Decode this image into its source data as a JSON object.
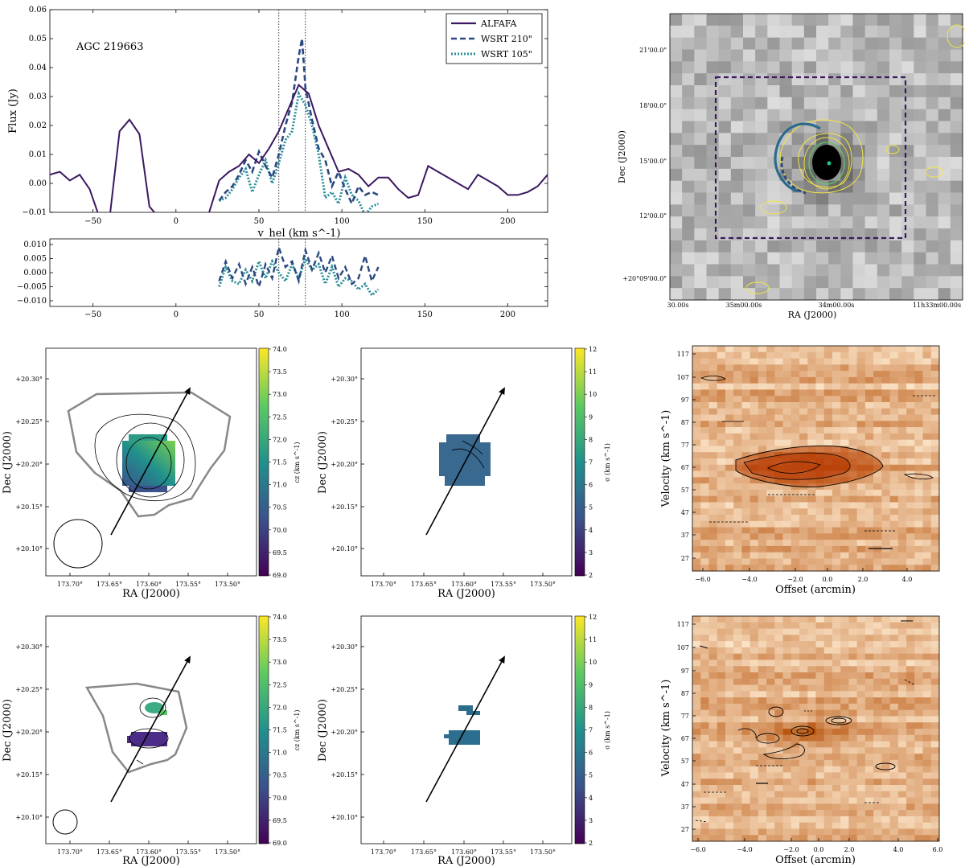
{
  "chart_data": [
    {
      "type": "line",
      "panel": "spectrum",
      "annotation": "AGC 219663",
      "xlabel": "v_hel (km s^-1)",
      "ylabel": "Flux (Jy)",
      "xlim": [
        -76,
        224
      ],
      "ylim": [
        -0.01,
        0.06
      ],
      "xticks": [
        "−50",
        "0",
        "50",
        "100",
        "150",
        "200"
      ],
      "yticks": [
        "−0.01",
        "0.00",
        "0.01",
        "0.02",
        "0.03",
        "0.04",
        "0.05",
        "0.06"
      ],
      "vlines": [
        62,
        78
      ],
      "legend": [
        "ALFAFA",
        "WSRT 210\"",
        "WSRT 105\""
      ],
      "series": [
        {
          "name": "ALFAFA",
          "color": "#3b1860",
          "x": [
            -76,
            -70,
            -64,
            -58,
            -52,
            -46,
            -40,
            -34,
            -28,
            -22,
            -16,
            -10,
            -4,
            2,
            8,
            14,
            20,
            26,
            32,
            38,
            44,
            50,
            56,
            62,
            68,
            74,
            80,
            86,
            92,
            98,
            104,
            110,
            116,
            122,
            128,
            134,
            140,
            146,
            152,
            158,
            164,
            170,
            176,
            182,
            188,
            194,
            200,
            206,
            212,
            218,
            224
          ],
          "y": [
            0.003,
            0.004,
            0.001,
            0.003,
            -0.002,
            -0.012,
            -0.012,
            0.018,
            0.022,
            0.017,
            -0.008,
            -0.012,
            -0.012,
            -0.012,
            -0.012,
            -0.012,
            -0.01,
            0.001,
            0.004,
            0.006,
            0.01,
            0.007,
            0.012,
            0.018,
            0.026,
            0.034,
            0.031,
            0.02,
            0.012,
            0.004,
            0.005,
            0.003,
            -0.001,
            0.002,
            0.002,
            -0.002,
            -0.005,
            -0.004,
            0.006,
            0.004,
            0.002,
            0.0,
            -0.002,
            0.003,
            0.001,
            -0.001,
            -0.004,
            -0.004,
            -0.003,
            -0.001,
            0.003
          ]
        },
        {
          "name": "WSRT 210\"",
          "color": "#2b4880",
          "x": [
            26,
            30,
            34,
            38,
            42,
            46,
            50,
            54,
            58,
            62,
            66,
            70,
            74,
            76,
            78,
            82,
            86,
            90,
            94,
            98,
            102,
            106,
            110,
            114,
            118,
            122
          ],
          "y": [
            -0.006,
            -0.003,
            -0.001,
            0.003,
            0.008,
            0.004,
            0.011,
            0.006,
            0.002,
            0.01,
            0.02,
            0.028,
            0.044,
            0.05,
            0.033,
            0.022,
            0.012,
            0.008,
            -0.001,
            0.004,
            -0.002,
            -0.007,
            -0.001,
            -0.004,
            -0.003,
            -0.004
          ]
        },
        {
          "name": "WSRT 105\"",
          "color": "#2a8e99",
          "x": [
            26,
            30,
            34,
            38,
            42,
            46,
            50,
            54,
            58,
            62,
            66,
            70,
            74,
            78,
            82,
            86,
            90,
            94,
            98,
            102,
            106,
            110,
            114,
            118,
            122
          ],
          "y": [
            -0.006,
            -0.005,
            -0.002,
            0.002,
            0.005,
            -0.003,
            0.003,
            0.008,
            0.0,
            0.007,
            0.015,
            0.018,
            0.031,
            0.027,
            0.02,
            0.01,
            -0.005,
            -0.003,
            -0.007,
            0.002,
            -0.004,
            -0.006,
            -0.011,
            -0.008,
            -0.007
          ]
        }
      ]
    },
    {
      "type": "line",
      "panel": "residual",
      "xlim": [
        -76,
        224
      ],
      "ylim": [
        -0.012,
        0.012
      ],
      "xticks": [
        "−50",
        "0",
        "50",
        "100",
        "150",
        "200"
      ],
      "yticks": [
        "0.010",
        "0.005",
        "0.000",
        "−0.005",
        "−0.010"
      ],
      "series": [
        {
          "name": "WSRT 210\" residual",
          "color": "#2b4880",
          "x": [
            26,
            30,
            34,
            38,
            42,
            46,
            50,
            54,
            58,
            62,
            66,
            70,
            74,
            78,
            82,
            86,
            90,
            94,
            98,
            102,
            106,
            110,
            114,
            118,
            122
          ],
          "y": [
            -0.003,
            0.004,
            -0.002,
            0.003,
            -0.004,
            0.002,
            -0.005,
            0.003,
            -0.002,
            0.009,
            0.002,
            0.004,
            -0.003,
            0.008,
            0.001,
            0.007,
            0.0,
            0.006,
            -0.002,
            0.002,
            -0.004,
            -0.002,
            0.006,
            -0.003,
            0.002
          ]
        },
        {
          "name": "WSRT 105\" residual",
          "color": "#2a8e99",
          "x": [
            26,
            30,
            34,
            38,
            42,
            46,
            50,
            54,
            58,
            62,
            66,
            70,
            74,
            78,
            82,
            86,
            90,
            94,
            98,
            102,
            106,
            110,
            114,
            118,
            122
          ],
          "y": [
            -0.005,
            0.002,
            -0.003,
            -0.004,
            0.001,
            -0.003,
            0.004,
            -0.002,
            0.004,
            0.0,
            -0.003,
            0.003,
            -0.002,
            0.005,
            0.001,
            0.003,
            -0.004,
            0.002,
            -0.005,
            -0.002,
            -0.003,
            -0.006,
            -0.004,
            -0.008,
            -0.006
          ]
        }
      ]
    },
    {
      "type": "heatmap",
      "panel": "optical image",
      "xlabel": "RA (J2000)",
      "ylabel": "Dec (J2000)",
      "xticks": [
        "30.00s",
        "35m00.00s",
        "34m00.00s",
        "11h33m00.00s"
      ],
      "yticks": [
        "21'00.0\"",
        "18'00.0\"",
        "15'00.0\"",
        "12'00.0\"",
        "+20°09'00.0\""
      ]
    },
    {
      "type": "heatmap",
      "panel": "velocity field 210",
      "xlabel": "RA (J2000)",
      "ylabel": "Dec (J2000)",
      "colorbar_label": "cz (km s^-1)",
      "xticks": [
        "173.70°",
        "173.65°",
        "173.60°",
        "173.55°",
        "173.50°"
      ],
      "yticks": [
        "+20.30°",
        "+20.25°",
        "+20.20°",
        "+20.15°",
        "+20.10°"
      ],
      "cbar_ticks": [
        "74.0",
        "73.5",
        "73.0",
        "72.5",
        "72.0",
        "71.5",
        "71.0",
        "70.5",
        "70.0",
        "69.5",
        "69.0"
      ]
    },
    {
      "type": "heatmap",
      "panel": "dispersion 210",
      "xlabel": "RA (J2000)",
      "ylabel": "Dec (J2000)",
      "colorbar_label": "σ (km s^-1)",
      "xticks": [
        "173.70°",
        "173.65°",
        "173.60°",
        "173.55°",
        "173.50°"
      ],
      "yticks": [
        "+20.30°",
        "+20.25°",
        "+20.20°",
        "+20.15°",
        "+20.10°"
      ],
      "cbar_ticks": [
        "12",
        "11",
        "10",
        "9",
        "8",
        "7",
        "6",
        "5",
        "4",
        "3",
        "2"
      ]
    },
    {
      "type": "heatmap",
      "panel": "pv 210",
      "xlabel": "Offset (arcmin)",
      "ylabel": "Velocity (km s^-1)",
      "xticks": [
        "−6.0",
        "−4.0",
        "−2.0",
        "0.0",
        "2.0",
        "4.0"
      ],
      "yticks": [
        "117",
        "107",
        "97",
        "87",
        "77",
        "67",
        "57",
        "47",
        "37",
        "27"
      ]
    },
    {
      "type": "heatmap",
      "panel": "velocity field 105",
      "xlabel": "RA (J2000)",
      "ylabel": "Dec (J2000)",
      "colorbar_label": "cz (km s^-1)",
      "xticks": [
        "173.70°",
        "173.65°",
        "173.60°",
        "173.55°",
        "173.50°"
      ],
      "yticks": [
        "+20.30°",
        "+20.25°",
        "+20.20°",
        "+20.15°",
        "+20.10°"
      ],
      "cbar_ticks": [
        "74.0",
        "73.5",
        "73.0",
        "72.5",
        "72.0",
        "71.5",
        "71.0",
        "70.5",
        "70.0",
        "69.5",
        "69.0"
      ]
    },
    {
      "type": "heatmap",
      "panel": "dispersion 105",
      "xlabel": "RA (J2000)",
      "ylabel": "Dec (J2000)",
      "colorbar_label": "σ (km s^-1)",
      "xticks": [
        "173.70°",
        "173.65°",
        "173.60°",
        "173.55°",
        "173.50°"
      ],
      "yticks": [
        "+20.30°",
        "+20.25°",
        "+20.20°",
        "+20.15°",
        "+20.10°"
      ],
      "cbar_ticks": [
        "12",
        "11",
        "10",
        "9",
        "8",
        "7",
        "6",
        "5",
        "4",
        "3",
        "2"
      ]
    },
    {
      "type": "heatmap",
      "panel": "pv 105",
      "xlabel": "Offset (arcmin)",
      "ylabel": "Velocity (km s^-1)",
      "xticks": [
        "−6.0",
        "−4.0",
        "−2.0",
        "0.0",
        "2.0",
        "4.0",
        "6.0"
      ],
      "yticks": [
        "117",
        "107",
        "97",
        "87",
        "77",
        "67",
        "57",
        "47",
        "37",
        "27"
      ]
    }
  ]
}
